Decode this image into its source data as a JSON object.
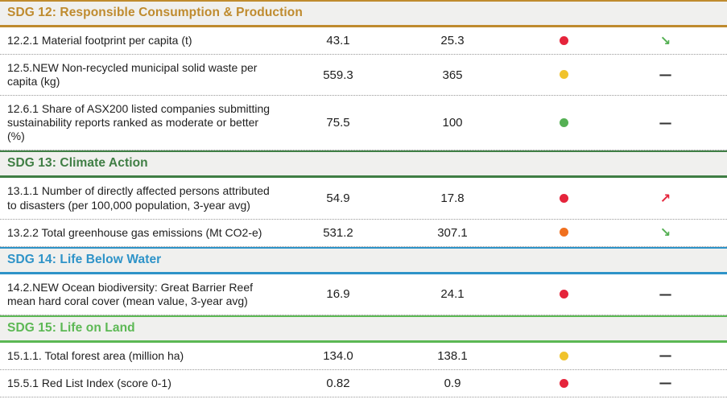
{
  "chart_data": {
    "type": "table",
    "sections": [
      {
        "id": "sdg12",
        "title": "SDG 12: Responsible Consumption & Production",
        "color": "#bf8b2e",
        "rows": [
          {
            "indicator": "12.2.1 Material footprint per capita (t)",
            "values": [
              "43.1",
              "25.3"
            ],
            "status": "red",
            "trend": "down"
          },
          {
            "indicator": "12.5.NEW Non-recycled municipal solid waste per capita (kg)",
            "values": [
              "559.3",
              "365"
            ],
            "status": "yellow",
            "trend": "flat"
          },
          {
            "indicator": "12.6.1 Share of ASX200 listed companies submitting sustainability reports ranked as moderate or better (%)",
            "values": [
              "75.5",
              "100"
            ],
            "status": "green",
            "trend": "flat"
          }
        ]
      },
      {
        "id": "sdg13",
        "title": "SDG 13: Climate Action",
        "color": "#3f7e44",
        "rows": [
          {
            "indicator": "13.1.1 Number of directly affected persons attributed to disasters (per 100,000 population, 3-year avg)",
            "values": [
              "54.9",
              "17.8"
            ],
            "status": "red",
            "trend": "up"
          },
          {
            "indicator": "13.2.2 Total greenhouse gas emissions (Mt CO2-e)",
            "values": [
              "531.2",
              "307.1"
            ],
            "status": "orange",
            "trend": "down"
          }
        ]
      },
      {
        "id": "sdg14",
        "title": "SDG 14: Life Below Water",
        "color": "#2e93c8",
        "rows": [
          {
            "indicator": "14.2.NEW Ocean biodiversity: Great Barrier Reef mean hard coral cover (mean value, 3-year avg)",
            "values": [
              "16.9",
              "24.1"
            ],
            "status": "red",
            "trend": "flat"
          }
        ]
      },
      {
        "id": "sdg15",
        "title": "SDG 15: Life on Land",
        "color": "#5cb854",
        "rows": [
          {
            "indicator": "15.1.1. Total forest area (million ha)",
            "values": [
              "134.0",
              "138.1"
            ],
            "status": "yellow",
            "trend": "flat"
          },
          {
            "indicator": "15.5.1 Red List Index (score 0-1)",
            "values": [
              "0.82",
              "0.9"
            ],
            "status": "red",
            "trend": "flat"
          }
        ]
      }
    ],
    "status_colors": {
      "red": "#e5243b",
      "yellow": "#f0c32c",
      "green": "#55b054",
      "orange": "#f0701f"
    },
    "trend_glyphs": {
      "up": "↗",
      "down": "↘",
      "flat": "—"
    },
    "trend_colors": {
      "up": "#e5243b",
      "down": "#55b054",
      "flat": "#333333"
    }
  }
}
